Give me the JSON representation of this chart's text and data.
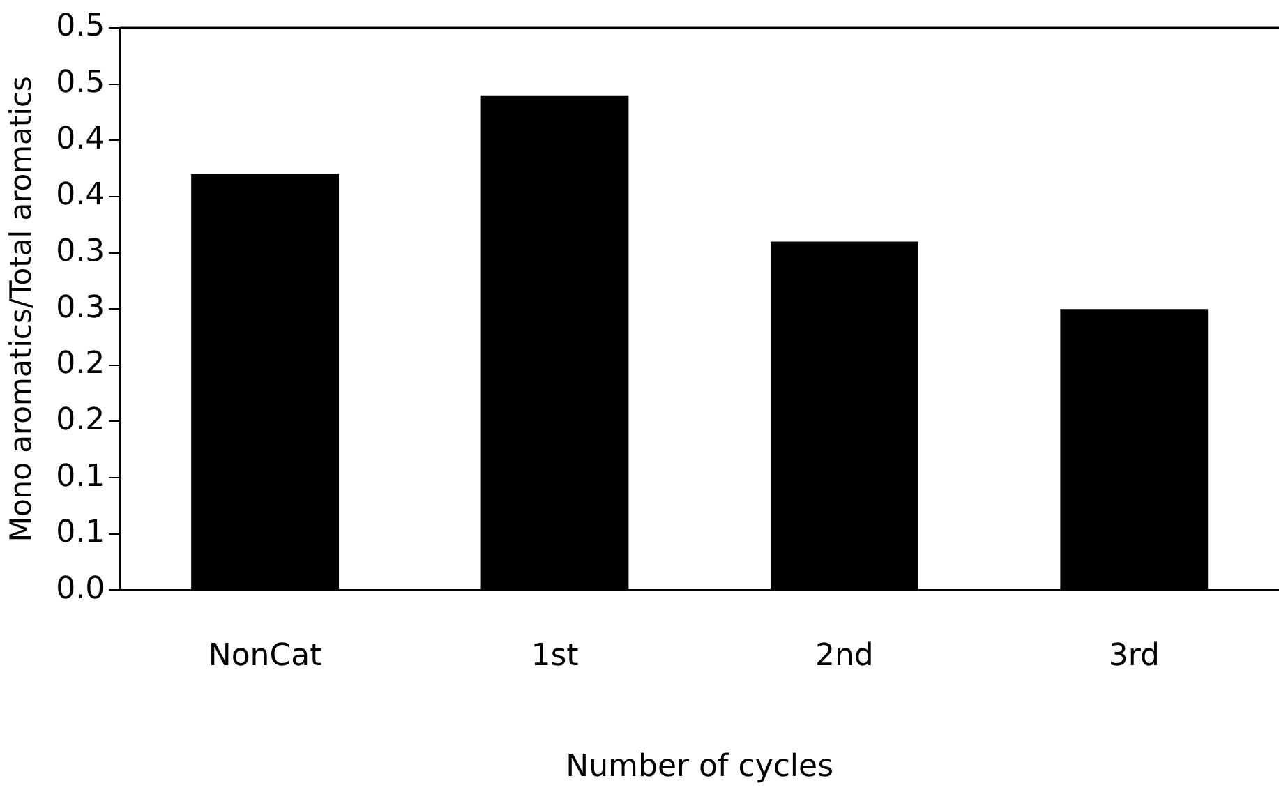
{
  "chart_data": {
    "type": "bar",
    "xlabel": "Number of cycles",
    "ylabel": "Mono aromatics/Total aromatics",
    "categories": [
      "NonCat",
      "1st",
      "2nd",
      "3rd"
    ],
    "values": [
      0.37,
      0.44,
      0.31,
      0.25
    ],
    "color": "#000000",
    "ylim": [
      0,
      0.5
    ],
    "yticks": [
      {
        "value": 0,
        "label": "0.0"
      },
      {
        "value": 0.05,
        "label": "0.1"
      },
      {
        "value": 0.1,
        "label": "0.1"
      },
      {
        "value": 0.15,
        "label": "0.2"
      },
      {
        "value": 0.2,
        "label": "0.2"
      },
      {
        "value": 0.25,
        "label": "0.3"
      },
      {
        "value": 0.3,
        "label": "0.3"
      },
      {
        "value": 0.35,
        "label": "0.4"
      },
      {
        "value": 0.4,
        "label": "0.4"
      },
      {
        "value": 0.45,
        "label": "0.5"
      },
      {
        "value": 0.5,
        "label": "0.5"
      }
    ],
    "grid": false,
    "legend": false
  }
}
